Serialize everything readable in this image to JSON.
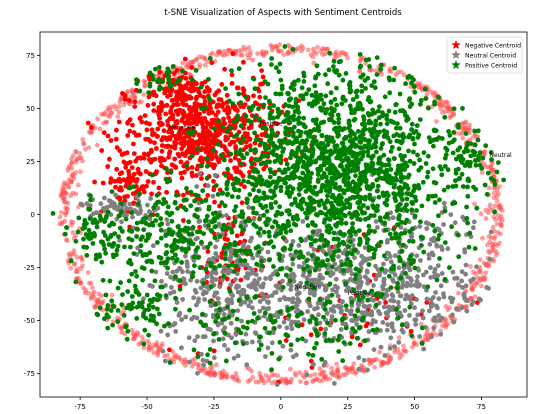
{
  "chart_data": {
    "type": "scatter",
    "title": "t-SNE Visualization of Aspects with Sentiment Centroids",
    "xlabel": "",
    "ylabel": "",
    "xlim": [
      -90,
      92
    ],
    "ylim": [
      -86,
      86
    ],
    "xticks": [
      -75,
      -50,
      -25,
      0,
      25,
      50,
      75
    ],
    "yticks": [
      -75,
      -50,
      -25,
      0,
      25,
      50,
      75
    ],
    "grid": false,
    "legend": {
      "position": "top-right",
      "entries": [
        {
          "label": "Negative Centroid",
          "color": "#ff0000",
          "marker": "star"
        },
        {
          "label": "Neutral Centroid",
          "color": "#808080",
          "marker": "star"
        },
        {
          "label": "Positive Centroid",
          "color": "#008000",
          "marker": "star"
        }
      ]
    },
    "series": [
      {
        "color": "#ff4d4d",
        "alpha": 0.55,
        "clusters": [
          {
            "ring": true,
            "rx": 83,
            "ry": 80,
            "cx": 0,
            "cy": 0,
            "count": 900,
            "spread": 3
          }
        ]
      },
      {
        "color": "#ff0000",
        "clusters": [
          {
            "cx": -30,
            "cy": 38,
            "sx": 14,
            "sy": 13,
            "count": 700
          },
          {
            "cx": -37,
            "cy": 60,
            "sx": 4,
            "sy": 3,
            "count": 60
          },
          {
            "cx": -57,
            "cy": 15,
            "sx": 4,
            "sy": 9,
            "count": 80
          },
          {
            "cx": -20,
            "cy": -22,
            "sx": 4,
            "sy": 10,
            "count": 60
          },
          {
            "cx": 15,
            "cy": -40,
            "sx": 28,
            "sy": 18,
            "count": 70
          }
        ]
      },
      {
        "color": "#808080",
        "clusters": [
          {
            "cx": 25,
            "cy": -35,
            "sx": 25,
            "sy": 15,
            "count": 700
          },
          {
            "cx": -25,
            "cy": -30,
            "sx": 12,
            "sy": 20,
            "count": 300
          },
          {
            "cx": -60,
            "cy": 3,
            "sx": 8,
            "sy": 3,
            "count": 60
          },
          {
            "cx": 55,
            "cy": -10,
            "sx": 10,
            "sy": 8,
            "count": 60
          }
        ]
      },
      {
        "color": "#008000",
        "clusters": [
          {
            "cx": 20,
            "cy": 20,
            "sx": 22,
            "sy": 25,
            "count": 1700
          },
          {
            "cx": -40,
            "cy": -10,
            "sx": 15,
            "sy": 12,
            "count": 250
          },
          {
            "cx": -70,
            "cy": -10,
            "sx": 4,
            "sy": 6,
            "count": 50
          },
          {
            "cx": -55,
            "cy": -45,
            "sx": 10,
            "sy": 8,
            "count": 80
          },
          {
            "cx": 0,
            "cy": -55,
            "sx": 25,
            "sy": 8,
            "count": 120
          },
          {
            "cx": 72,
            "cy": 25,
            "sx": 6,
            "sy": 6,
            "count": 60
          },
          {
            "cx": -45,
            "cy": 65,
            "sx": 8,
            "sy": 4,
            "count": 40
          }
        ]
      }
    ],
    "annotations": [
      {
        "text": "Negative",
        "x": -42,
        "y": 40
      },
      {
        "text": "Positive",
        "x": -8,
        "y": 42
      },
      {
        "text": "Neutral",
        "x": 78,
        "y": 27
      },
      {
        "text": "Negative",
        "x": 5,
        "y": -35
      },
      {
        "text": "Positive",
        "x": 25,
        "y": -38
      }
    ]
  }
}
